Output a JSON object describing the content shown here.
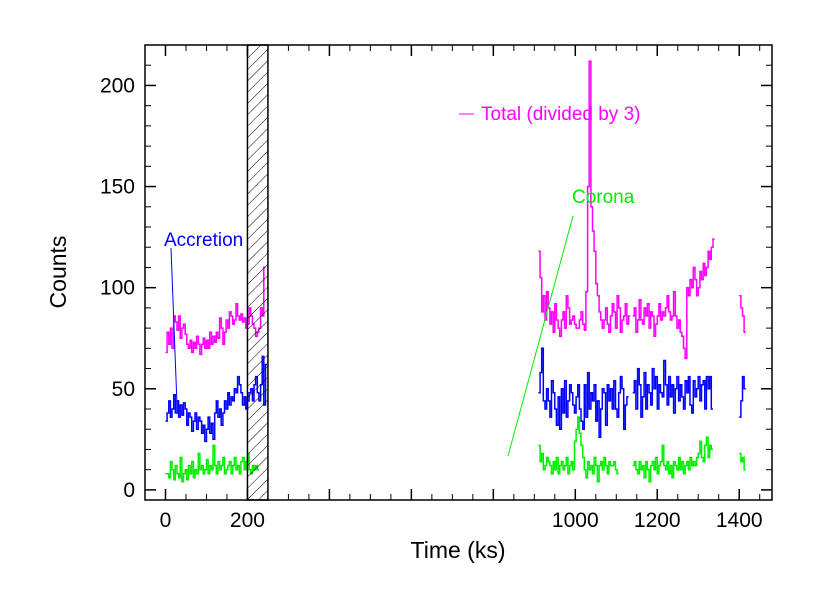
{
  "chart_data": {
    "type": "line",
    "xlabel": "Time (ks)",
    "ylabel": "Counts",
    "xlim": [
      -50,
      1480
    ],
    "ylim": [
      -5,
      220
    ],
    "xticks": [
      0,
      200,
      400,
      600,
      800,
      1000,
      1200,
      1400
    ],
    "xtick_labels": [
      "0",
      "200",
      "",
      "",
      "",
      "1000",
      "1200",
      "1400"
    ],
    "yticks": [
      0,
      50,
      100,
      150,
      200
    ],
    "ytick_labels": [
      "0",
      "50",
      "100",
      "150",
      "200"
    ],
    "shaded_region": {
      "x": [
        200,
        250
      ],
      "pattern": "hatched"
    },
    "annotations": {
      "accretion": "Accretion",
      "corona": "Corona",
      "total": "Total (divided by 3)"
    },
    "colors": {
      "total": "#ff00ff",
      "accretion": "#0000ff",
      "corona": "#00ee00"
    },
    "series": [
      {
        "color": "#ff00ff",
        "segments": [
          {
            "x0": 0,
            "dx": 4,
            "y": [
              68,
              78,
              72,
              80,
              70,
              86,
              83,
              79,
              86,
              75,
              80,
              82,
              77,
              72,
              70,
              74,
              68,
              73,
              70,
              76,
              72,
              67,
              72,
              75,
              70,
              74,
              70,
              78,
              72,
              76,
              73,
              78,
              75,
              85,
              80,
              72,
              78,
              84,
              80,
              88,
              86,
              82,
              84,
              92,
              86,
              84,
              87,
              83,
              85,
              80,
              82,
              90,
              86,
              82,
              80,
              76,
              78,
              80,
              90,
              86,
              110
            ]
          },
          {
            "x0": 910,
            "dx": 4,
            "y": [
              118,
              105,
              88,
              96,
              84,
              98,
              90,
              82,
              88,
              78,
              92,
              84,
              80,
              76,
              84,
              88,
              80,
              96,
              90,
              82,
              84,
              86,
              82,
              80,
              80,
              84,
              88,
              82,
              79,
              98,
              150,
              212,
              140,
              128,
              118,
              102,
              96,
              88,
              84,
              80,
              84,
              90,
              82,
              78,
              86,
              92,
              88,
              80,
              96,
              90,
              78,
              84,
              86,
              92,
              82,
              86
            ]
          },
          {
            "x0": 1140,
            "dx": 4,
            "y": [
              86,
              90,
              78,
              84,
              94,
              84,
              82,
              90,
              86,
              92,
              80,
              88,
              86,
              76,
              82,
              86,
              92,
              84,
              88,
              86,
              90,
              96,
              88,
              84,
              86,
              98,
              86,
              80,
              84,
              78,
              76,
              70,
              65,
              100,
              96,
              104,
              100,
              110,
              104,
              96,
              100,
              108,
              104,
              112,
              106,
              110,
              118,
              114,
              120,
              124
            ]
          },
          {
            "x0": 1400,
            "dx": 4,
            "y": [
              96,
              90,
              86,
              78
            ]
          }
        ]
      },
      {
        "color": "#0000ff",
        "segments": [
          {
            "x0": 0,
            "dx": 4,
            "y": [
              34,
              38,
              44,
              36,
              40,
              47,
              38,
              44,
              36,
              42,
              37,
              43,
              40,
              32,
              38,
              36,
              29,
              34,
              38,
              30,
              36,
              34,
              28,
              32,
              24,
              30,
              36,
              28,
              33,
              25,
              38,
              44,
              36,
              40,
              32,
              38,
              44,
              40,
              48,
              42,
              46,
              44,
              50,
              48,
              56,
              52,
              48,
              42,
              46,
              40,
              44,
              48,
              50,
              44,
              52,
              56,
              48,
              44,
              52,
              66,
              42,
              62
            ]
          },
          {
            "x0": 910,
            "dx": 4,
            "y": [
              48,
              58,
              70,
              44,
              40,
              50,
              44,
              36,
              54,
              48,
              40,
              32,
              46,
              30,
              50,
              38,
              54,
              36,
              44,
              52,
              48,
              42,
              38,
              46,
              52,
              40,
              34,
              30,
              52,
              36,
              58,
              40,
              48,
              44,
              52,
              34,
              44,
              26,
              40,
              50,
              48,
              32,
              52,
              44,
              50,
              40,
              54,
              40,
              36,
              48,
              56,
              50,
              30,
              42,
              46
            ]
          },
          {
            "x0": 1140,
            "dx": 4,
            "y": [
              48,
              54,
              40,
              60,
              52,
              36,
              46,
              58,
              40,
              52,
              48,
              42,
              60,
              50,
              56,
              40,
              52,
              48,
              46,
              64,
              52,
              42,
              56,
              46,
              52,
              38,
              50,
              56,
              44,
              52,
              46,
              40,
              54,
              48,
              56,
              42,
              38,
              54,
              46,
              50,
              56,
              44,
              52,
              54,
              40,
              56,
              50,
              56,
              40
            ]
          },
          {
            "x0": 1400,
            "dx": 4,
            "y": [
              36,
              44,
              56,
              50
            ]
          }
        ]
      },
      {
        "color": "#00ee00",
        "segments": [
          {
            "x0": 0,
            "dx": 4,
            "y": [
              8,
              8,
              6,
              14,
              10,
              5,
              12,
              8,
              6,
              16,
              4,
              8,
              10,
              5,
              12,
              8,
              14,
              6,
              10,
              8,
              18,
              10,
              12,
              8,
              10,
              15,
              8,
              12,
              10,
              22,
              12,
              8,
              14,
              10,
              12,
              16,
              8,
              10,
              12,
              14,
              8,
              12,
              16,
              10,
              12,
              8,
              14,
              16,
              10,
              14,
              18,
              10,
              8,
              12,
              10,
              12,
              10
            ]
          },
          {
            "x0": 910,
            "dx": 4,
            "y": [
              22,
              14,
              18,
              10,
              12,
              16,
              14,
              12,
              8,
              14,
              10,
              16,
              8,
              12,
              14,
              10,
              12,
              16,
              8,
              12,
              14,
              10,
              24,
              30,
              36,
              28,
              22,
              16,
              10,
              6,
              14,
              10,
              12,
              8,
              16,
              12,
              4,
              12,
              14,
              10,
              16,
              12,
              8,
              14,
              12,
              12,
              14,
              10,
              8
            ]
          },
          {
            "x0": 1140,
            "dx": 4,
            "y": [
              12,
              14,
              10,
              8,
              14,
              10,
              12,
              6,
              14,
              10,
              4,
              12,
              14,
              10,
              16,
              8,
              12,
              14,
              22,
              12,
              10,
              14,
              8,
              12,
              6,
              14,
              12,
              10,
              16,
              10,
              14,
              8,
              12,
              14,
              10,
              16,
              12,
              14,
              12,
              16,
              18,
              24,
              16,
              14,
              22,
              26,
              16,
              22,
              20
            ]
          },
          {
            "x0": 1400,
            "dx": 4,
            "y": [
              18,
              14,
              16,
              10
            ]
          }
        ]
      }
    ]
  }
}
